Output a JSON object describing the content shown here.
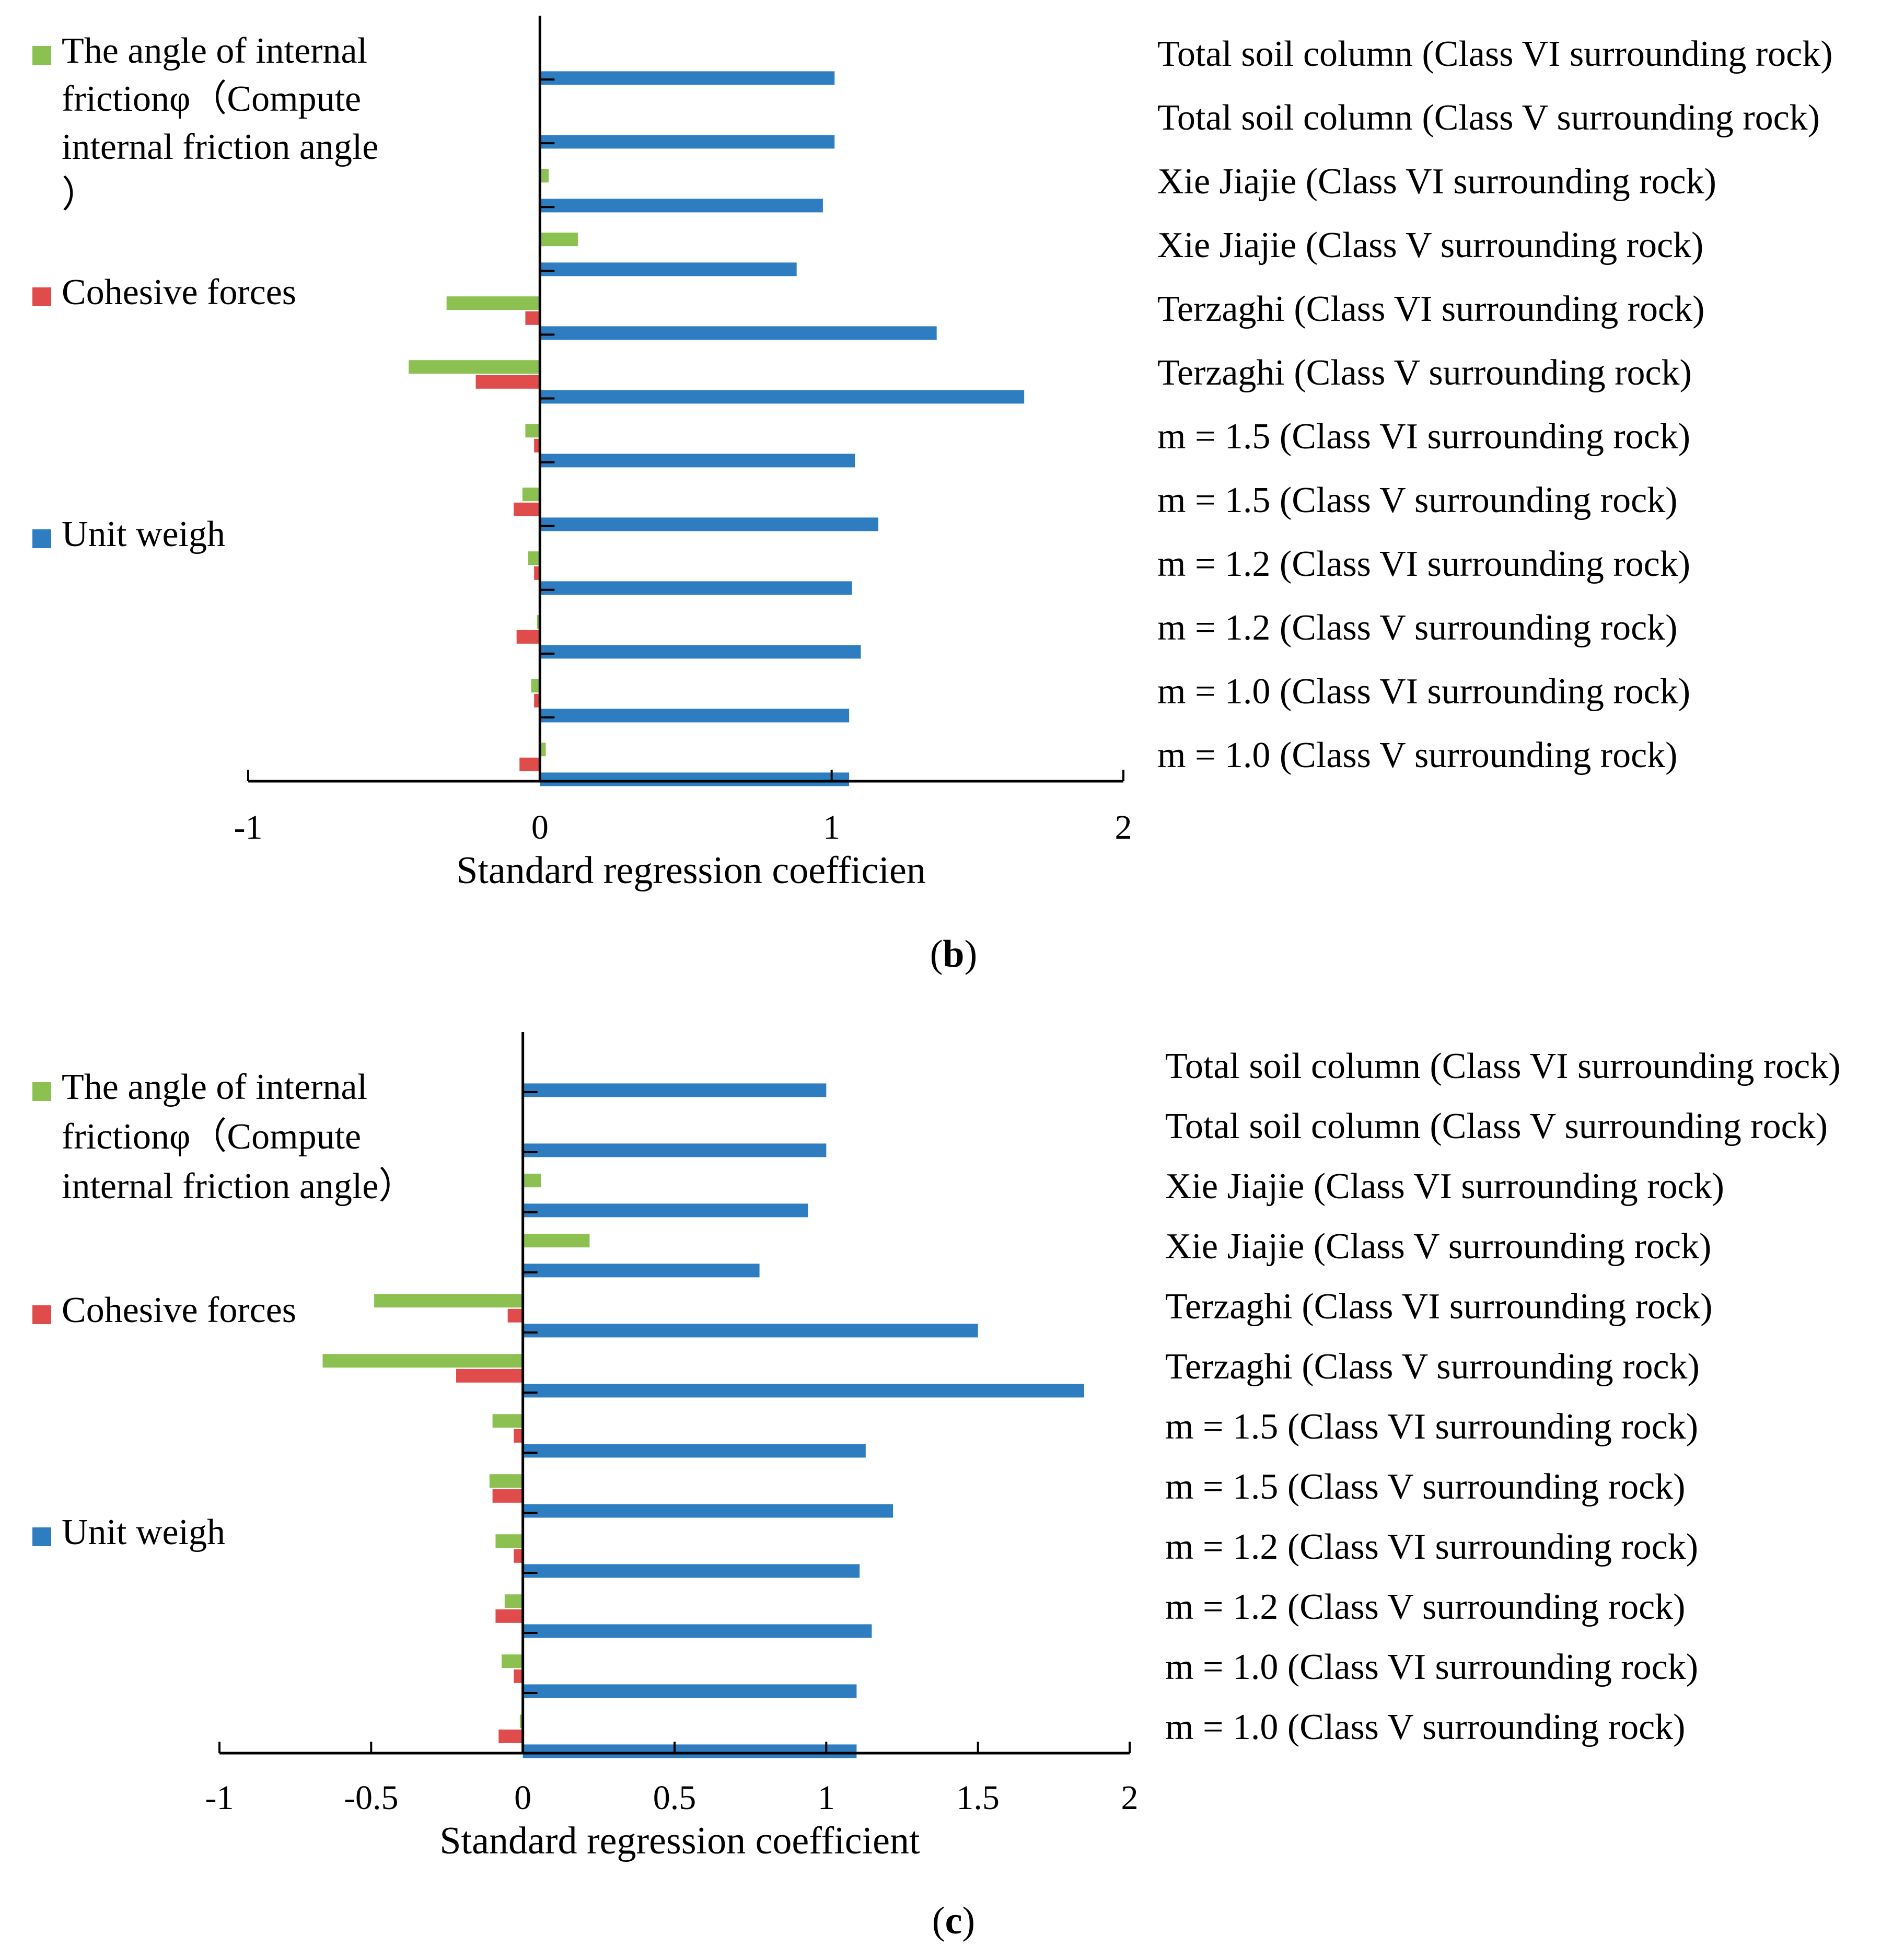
{
  "colors": {
    "unit_weight": "#2E7DC1",
    "cohesion": "#E04B4B",
    "friction": "#8CC152",
    "axis": "#000000"
  },
  "chart_data": [
    {
      "id": "b",
      "type": "bar",
      "orientation": "horizontal",
      "panel_label": "b",
      "xlabel": "Standard regression coefficien",
      "xlim": [
        -1,
        2
      ],
      "xticks": [
        "-1",
        "0",
        "1",
        "2"
      ],
      "legend_position": "left",
      "legend": [
        {
          "key": "friction",
          "lines": [
            "The angle of internal",
            "frictionφ（Compute",
            "internal friction angle",
            "）"
          ]
        },
        {
          "key": "cohesion",
          "lines": [
            "Cohesive forces"
          ]
        },
        {
          "key": "unit_weight",
          "lines": [
            "Unit weigh"
          ]
        }
      ],
      "categories": [
        "Total soil column (Class VI surrounding rock)",
        "Total soil column (Class V surrounding rock)",
        "Xie Jiajie (Class VI surrounding rock)",
        "Xie Jiajie (Class V surrounding rock)",
        "Terzaghi (Class VI surrounding rock)",
        "Terzaghi (Class V surrounding rock)",
        "m = 1.5 (Class VI surrounding rock)",
        "m = 1.5 (Class V surrounding rock)",
        "m = 1.2 (Class VI surrounding rock)",
        "m = 1.2 (Class V surrounding rock)",
        "m = 1.0 (Class VI surrounding rock)",
        "m = 1.0 (Class V surrounding rock)"
      ],
      "series": [
        {
          "key": "friction",
          "name": "The angle of internal frictionφ",
          "values": [
            0,
            0,
            0.03,
            0.13,
            -0.32,
            -0.45,
            -0.05,
            -0.06,
            -0.04,
            -0.01,
            -0.03,
            0.02
          ]
        },
        {
          "key": "cohesion",
          "name": "Cohesive forces",
          "values": [
            0,
            0,
            0,
            0,
            -0.05,
            -0.22,
            -0.02,
            -0.09,
            -0.02,
            -0.08,
            -0.02,
            -0.07
          ]
        },
        {
          "key": "unit_weight",
          "name": "Unit weigh",
          "values": [
            1.01,
            1.01,
            0.97,
            0.88,
            1.36,
            1.66,
            1.08,
            1.16,
            1.07,
            1.1,
            1.06,
            1.06
          ]
        }
      ]
    },
    {
      "id": "c",
      "type": "bar",
      "orientation": "horizontal",
      "panel_label": "c",
      "xlabel": "Standard regression coefficient",
      "xlim": [
        -1,
        2
      ],
      "xticks": [
        "-1",
        "-0.5",
        "0",
        "0.5",
        "1",
        "1.5",
        "2"
      ],
      "legend_position": "left",
      "legend": [
        {
          "key": "friction",
          "lines": [
            "The angle of internal",
            "frictionφ（Compute",
            "internal friction angle）"
          ]
        },
        {
          "key": "cohesion",
          "lines": [
            "Cohesive forces"
          ]
        },
        {
          "key": "unit_weight",
          "lines": [
            "Unit weigh"
          ]
        }
      ],
      "categories": [
        "Total soil column (Class VI surrounding rock)",
        "Total soil column (Class V surrounding rock)",
        "Xie Jiajie (Class VI surrounding rock)",
        "Xie Jiajie (Class V surrounding rock)",
        "Terzaghi (Class VI surrounding rock)",
        "Terzaghi (Class V surrounding rock)",
        "m = 1.5 (Class VI surrounding rock)",
        "m = 1.5 (Class V surrounding rock)",
        "m = 1.2 (Class VI surrounding rock)",
        "m = 1.2 (Class V surrounding rock)",
        "m = 1.0 (Class VI surrounding rock)",
        "m = 1.0 (Class V surrounding rock)"
      ],
      "series": [
        {
          "key": "friction",
          "name": "The angle of internal frictionφ",
          "values": [
            0,
            0,
            0.06,
            0.22,
            -0.49,
            -0.66,
            -0.1,
            -0.11,
            -0.09,
            -0.06,
            -0.07,
            -0.01
          ]
        },
        {
          "key": "cohesion",
          "name": "Cohesive forces",
          "values": [
            0,
            0,
            0,
            0,
            -0.05,
            -0.22,
            -0.03,
            -0.1,
            -0.03,
            -0.09,
            -0.03,
            -0.08
          ]
        },
        {
          "key": "unit_weight",
          "name": "Unit weigh",
          "values": [
            1.0,
            1.0,
            0.94,
            0.78,
            1.5,
            1.85,
            1.13,
            1.22,
            1.11,
            1.15,
            1.1,
            1.1
          ]
        }
      ]
    }
  ]
}
